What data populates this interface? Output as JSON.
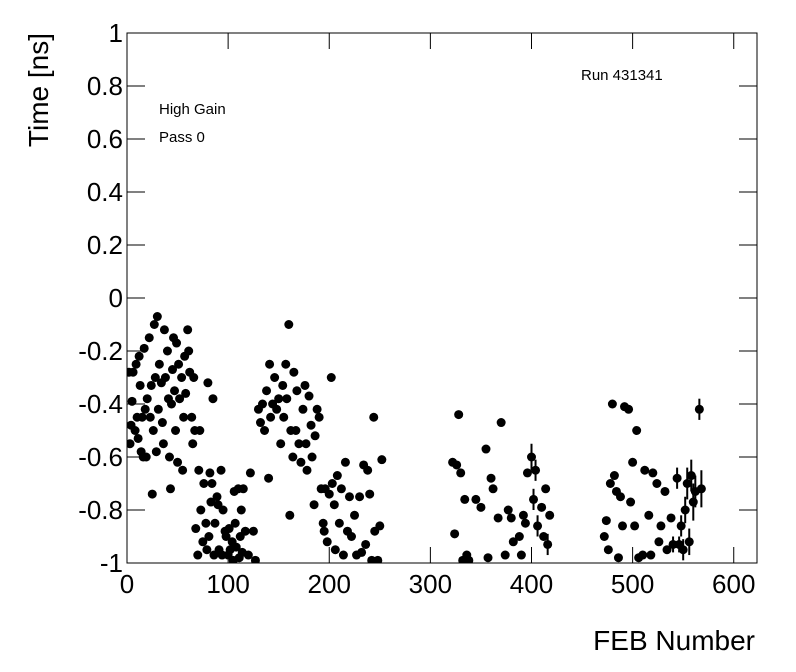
{
  "chart_data": {
    "type": "scatter",
    "xlabel": "FEB Number",
    "ylabel": "Time [ns]",
    "annotations": [
      "Run 431341",
      "High Gain",
      "Pass 0"
    ],
    "color": "#000000",
    "xlim": [
      0,
      623
    ],
    "ylim": [
      -1,
      1
    ],
    "xticks": [
      0,
      100,
      200,
      300,
      400,
      500,
      600
    ],
    "yticks": [
      -1,
      -0.8,
      -0.6,
      -0.4,
      -0.2,
      0,
      0.2,
      0.4,
      0.6,
      0.8,
      1
    ],
    "x": [
      2,
      3,
      4,
      5,
      6,
      8,
      9,
      10,
      11,
      12,
      13,
      14,
      15,
      16,
      17,
      18,
      19,
      20,
      22,
      23,
      24,
      25,
      26,
      27,
      28,
      29,
      30,
      31,
      32,
      34,
      35,
      36,
      37,
      38,
      40,
      41,
      42,
      43,
      44,
      45,
      46,
      47,
      48,
      49,
      50,
      51,
      52,
      54,
      55,
      56,
      57,
      58,
      60,
      61,
      62,
      64,
      65,
      66,
      67,
      68,
      70,
      71,
      72,
      73,
      75,
      76,
      78,
      79,
      80,
      81,
      82,
      83,
      84,
      85,
      86,
      87,
      89,
      90,
      91,
      93,
      94,
      95,
      97,
      98,
      100,
      101,
      102,
      104,
      105,
      106,
      107,
      108,
      110,
      111,
      112,
      113,
      114,
      115,
      117,
      120,
      122,
      125,
      127,
      130,
      132,
      134,
      136,
      138,
      140,
      141,
      142,
      144,
      146,
      148,
      150,
      152,
      154,
      155,
      157,
      158,
      160,
      161,
      162,
      164,
      165,
      167,
      168,
      170,
      172,
      174,
      176,
      177,
      178,
      180,
      182,
      183,
      185,
      186,
      188,
      190,
      192,
      194,
      195,
      196,
      198,
      200,
      202,
      203,
      205,
      206,
      208,
      210,
      212,
      214,
      216,
      218,
      220,
      222,
      225,
      227,
      230,
      232,
      234,
      236,
      238,
      240,
      242,
      244,
      245,
      248,
      250,
      252,
      322,
      324,
      326,
      328,
      330,
      332,
      334,
      336,
      338,
      345,
      350,
      355,
      357,
      360,
      362,
      367,
      370,
      374,
      377,
      380,
      382,
      388,
      390,
      392,
      394,
      396,
      400,
      402,
      404,
      406,
      410,
      412,
      414,
      416,
      418,
      472,
      474,
      476,
      478,
      480,
      482,
      484,
      486,
      488,
      490,
      492,
      496,
      498,
      500,
      502,
      504,
      506,
      510,
      512,
      516,
      518,
      520,
      524,
      526,
      528,
      532,
      534,
      538,
      540,
      544,
      546,
      548,
      550,
      552,
      554,
      556,
      558,
      560,
      562,
      566,
      568
    ],
    "y": [
      -0.28,
      -0.55,
      -0.48,
      -0.39,
      -0.28,
      -0.5,
      -0.25,
      -0.45,
      -0.53,
      -0.22,
      -0.33,
      -0.58,
      -0.45,
      -0.6,
      -0.19,
      -0.42,
      -0.6,
      -0.38,
      -0.15,
      -0.45,
      -0.33,
      -0.74,
      -0.5,
      -0.1,
      -0.3,
      -0.58,
      -0.07,
      -0.42,
      -0.25,
      -0.32,
      -0.47,
      -0.55,
      -0.12,
      -0.3,
      -0.2,
      -0.38,
      -0.6,
      -0.72,
      -0.4,
      -0.27,
      -0.15,
      -0.35,
      -0.5,
      -0.17,
      -0.62,
      -0.25,
      -0.38,
      -0.3,
      -0.65,
      -0.45,
      -0.22,
      -0.36,
      -0.12,
      -0.2,
      -0.28,
      -0.45,
      -0.55,
      -0.3,
      -0.5,
      -0.87,
      -0.97,
      -0.65,
      -0.5,
      -0.8,
      -0.92,
      -0.7,
      -0.85,
      -0.95,
      -0.32,
      -0.9,
      -0.66,
      -0.77,
      -0.7,
      -0.38,
      -0.97,
      -0.85,
      -0.75,
      -0.78,
      -0.95,
      -0.65,
      -0.97,
      -0.8,
      -0.88,
      -0.9,
      -0.97,
      -0.87,
      -0.95,
      -0.92,
      -0.99,
      -0.73,
      -0.85,
      -0.94,
      -0.72,
      -0.98,
      -0.9,
      -0.8,
      -0.96,
      -0.72,
      -0.88,
      -0.97,
      -0.66,
      -0.88,
      -0.99,
      -0.42,
      -0.47,
      -0.4,
      -0.5,
      -0.35,
      -0.68,
      -0.25,
      -0.45,
      -0.4,
      -0.3,
      -0.42,
      -0.38,
      -0.55,
      -0.33,
      -0.45,
      -0.25,
      -0.38,
      -0.1,
      -0.82,
      -0.5,
      -0.6,
      -0.28,
      -0.5,
      -0.35,
      -0.55,
      -0.62,
      -0.42,
      -0.33,
      -0.55,
      -0.65,
      -0.37,
      -0.48,
      -0.6,
      -0.78,
      -0.52,
      -0.42,
      -0.45,
      -0.72,
      -0.85,
      -0.88,
      -0.72,
      -0.92,
      -0.74,
      -0.3,
      -0.7,
      -0.78,
      -0.95,
      -0.67,
      -0.85,
      -0.72,
      -0.97,
      -0.62,
      -0.88,
      -0.75,
      -0.9,
      -0.82,
      -0.97,
      -0.75,
      -0.96,
      -0.63,
      -0.93,
      -0.65,
      -0.74,
      -0.99,
      -0.45,
      -0.88,
      -0.99,
      -0.86,
      -0.61,
      -0.62,
      -0.89,
      -0.63,
      -0.44,
      -0.66,
      -0.99,
      -0.76,
      -0.97,
      -0.99,
      -0.76,
      -0.79,
      -0.57,
      -0.98,
      -0.68,
      -0.72,
      -0.83,
      -0.47,
      -0.97,
      -0.8,
      -0.83,
      -0.92,
      -0.9,
      -0.97,
      -0.82,
      -0.85,
      -0.66,
      -0.6,
      -0.76,
      -0.65,
      -0.86,
      -0.79,
      -0.9,
      -0.72,
      -0.93,
      -0.82,
      -0.9,
      -0.84,
      -0.95,
      -0.7,
      -0.4,
      -0.67,
      -0.73,
      -0.98,
      -0.75,
      -0.86,
      -0.41,
      -0.42,
      -0.77,
      -0.62,
      -0.86,
      -0.5,
      -0.98,
      -0.97,
      -0.65,
      -0.82,
      -0.97,
      -0.66,
      -0.7,
      -0.92,
      -0.86,
      -0.73,
      -0.95,
      -0.83,
      -0.93,
      -0.68,
      -0.93,
      -0.86,
      -0.95,
      -0.8,
      -0.7,
      -0.92,
      -0.67,
      -0.77,
      -0.73,
      -0.42,
      -0.72
    ],
    "yerr": [
      0.015,
      0.015,
      0.015,
      0.015,
      0.015,
      0.015,
      0.015,
      0.015,
      0.015,
      0.015,
      0.015,
      0.015,
      0.015,
      0.015,
      0.015,
      0.015,
      0.015,
      0.015,
      0.015,
      0.015,
      0.015,
      0.015,
      0.015,
      0.015,
      0.015,
      0.015,
      0.015,
      0.015,
      0.015,
      0.015,
      0.015,
      0.015,
      0.015,
      0.015,
      0.015,
      0.015,
      0.015,
      0.015,
      0.015,
      0.015,
      0.015,
      0.015,
      0.015,
      0.015,
      0.015,
      0.015,
      0.015,
      0.015,
      0.015,
      0.015,
      0.015,
      0.015,
      0.015,
      0.015,
      0.015,
      0.015,
      0.015,
      0.015,
      0.015,
      0.015,
      0.015,
      0.015,
      0.015,
      0.015,
      0.015,
      0.015,
      0.015,
      0.015,
      0.015,
      0.015,
      0.015,
      0.015,
      0.015,
      0.015,
      0.015,
      0.015,
      0.015,
      0.015,
      0.015,
      0.015,
      0.015,
      0.015,
      0.015,
      0.015,
      0.015,
      0.015,
      0.015,
      0.015,
      0.015,
      0.015,
      0.015,
      0.015,
      0.015,
      0.015,
      0.015,
      0.015,
      0.015,
      0.015,
      0.015,
      0.015,
      0.015,
      0.015,
      0.015,
      0.015,
      0.015,
      0.015,
      0.015,
      0.015,
      0.015,
      0.015,
      0.015,
      0.015,
      0.015,
      0.015,
      0.015,
      0.015,
      0.015,
      0.015,
      0.015,
      0.015,
      0.015,
      0.015,
      0.015,
      0.015,
      0.015,
      0.015,
      0.015,
      0.015,
      0.015,
      0.015,
      0.015,
      0.015,
      0.015,
      0.015,
      0.015,
      0.015,
      0.015,
      0.015,
      0.015,
      0.015,
      0.015,
      0.015,
      0.015,
      0.015,
      0.015,
      0.015,
      0.015,
      0.015,
      0.015,
      0.015,
      0.015,
      0.015,
      0.015,
      0.015,
      0.015,
      0.015,
      0.015,
      0.015,
      0.015,
      0.015,
      0.015,
      0.015,
      0.015,
      0.015,
      0.015,
      0.015,
      0.015,
      0.015,
      0.015,
      0.015,
      0.015,
      0.015,
      0.015,
      0.015,
      0.015,
      0.015,
      0.015,
      0.015,
      0.015,
      0.015,
      0.015,
      0.015,
      0.015,
      0.015,
      0.015,
      0.015,
      0.015,
      0.015,
      0.015,
      0.015,
      0.015,
      0.015,
      0.015,
      0.015,
      0.015,
      0.015,
      0.015,
      0.015,
      0.05,
      0.04,
      0.04,
      0.04,
      0.015,
      0.015,
      0.015,
      0.04,
      0.015,
      0.015,
      0.015,
      0.015,
      0.015,
      0.015,
      0.015,
      0.015,
      0.015,
      0.015,
      0.015,
      0.015,
      0.015,
      0.015,
      0.015,
      0.015,
      0.015,
      0.015,
      0.015,
      0.015,
      0.015,
      0.015,
      0.015,
      0.015,
      0.015,
      0.015,
      0.015,
      0.015,
      0.015,
      0.03,
      0.04,
      0.03,
      0.04,
      0.04,
      0.05,
      0.06,
      0.05,
      0.06,
      0.07,
      0.06,
      0.04,
      0.07
    ]
  }
}
